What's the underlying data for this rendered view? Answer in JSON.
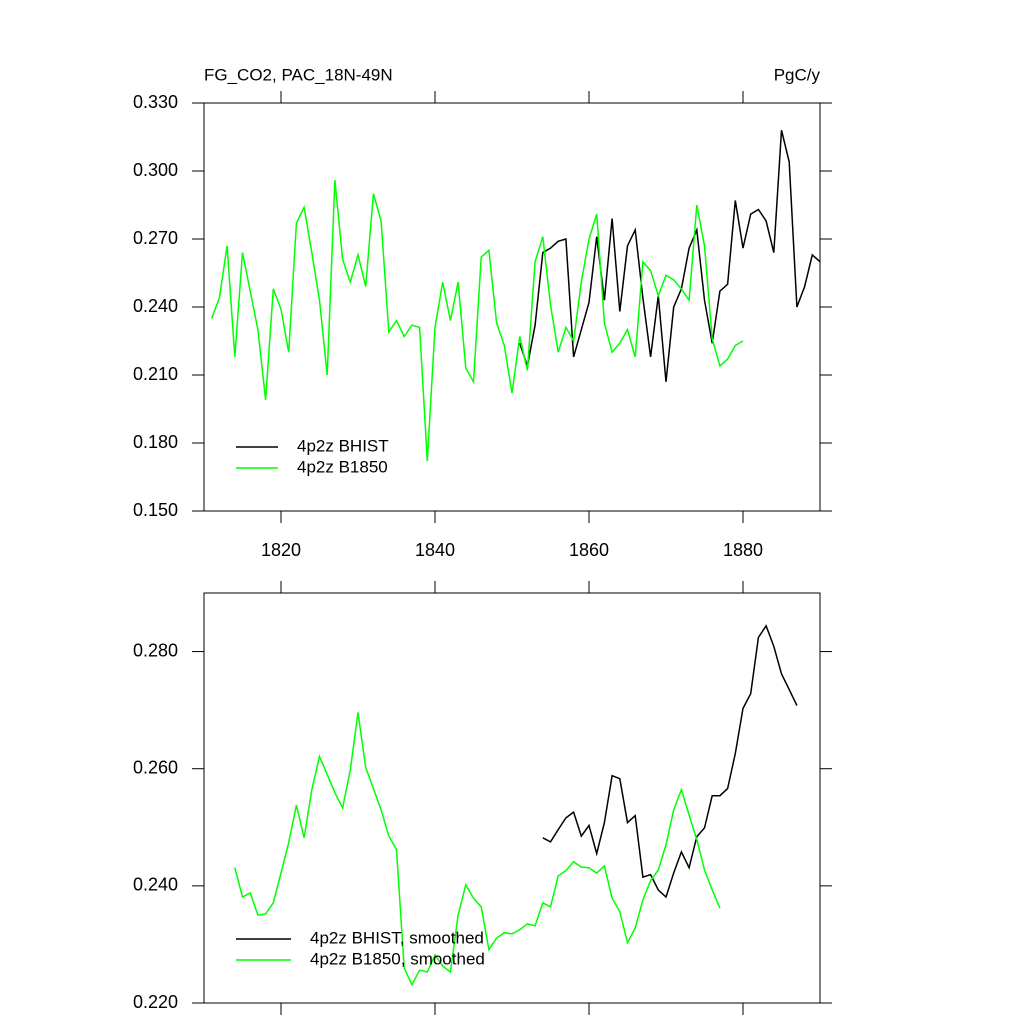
{
  "chart_data": [
    {
      "type": "line",
      "title": "FG_CO2, PAC_18N-49N",
      "units": "PgC/y",
      "legend": "lower left",
      "xlim": [
        1810,
        1890
      ],
      "xticks": [
        1820,
        1840,
        1860,
        1880
      ],
      "show_x_labels": true,
      "ylim": [
        0.15,
        0.33
      ],
      "yticks": [
        {
          "value": 0.15,
          "label": "0.150"
        },
        {
          "value": 0.18,
          "label": "0.180"
        },
        {
          "value": 0.21,
          "label": "0.210"
        },
        {
          "value": 0.24,
          "label": "0.240"
        },
        {
          "value": 0.27,
          "label": "0.270"
        },
        {
          "value": 0.3,
          "label": "0.300"
        },
        {
          "value": 0.33,
          "label": "0.330"
        }
      ],
      "x": [
        1811,
        1812,
        1813,
        1814,
        1815,
        1816,
        1817,
        1818,
        1819,
        1820,
        1821,
        1822,
        1823,
        1824,
        1825,
        1826,
        1827,
        1828,
        1829,
        1830,
        1831,
        1832,
        1833,
        1834,
        1835,
        1836,
        1837,
        1838,
        1839,
        1840,
        1841,
        1842,
        1843,
        1844,
        1845,
        1846,
        1847,
        1848,
        1849,
        1850,
        1851,
        1852,
        1853,
        1854,
        1855,
        1856,
        1857,
        1858,
        1859,
        1860,
        1861,
        1862,
        1863,
        1864,
        1865,
        1866,
        1867,
        1868,
        1869,
        1870,
        1871,
        1872,
        1873,
        1874,
        1875,
        1876,
        1877,
        1878,
        1879,
        1880,
        1881,
        1882,
        1883,
        1884,
        1885,
        1886,
        1887,
        1888,
        1889,
        1890
      ],
      "series": [
        {
          "name": "4p2z BHIST",
          "color": "#000000",
          "values": [
            null,
            null,
            null,
            null,
            null,
            null,
            null,
            null,
            null,
            null,
            null,
            null,
            null,
            null,
            null,
            null,
            null,
            null,
            null,
            null,
            null,
            null,
            null,
            null,
            null,
            null,
            null,
            null,
            null,
            null,
            null,
            null,
            null,
            null,
            null,
            null,
            null,
            null,
            null,
            null,
            0.224,
            0.214,
            0.232,
            0.264,
            0.266,
            0.269,
            0.27,
            0.218,
            0.23,
            0.242,
            0.271,
            0.243,
            0.279,
            0.238,
            0.267,
            0.274,
            0.244,
            0.218,
            0.245,
            0.207,
            0.24,
            0.248,
            0.266,
            0.274,
            0.243,
            0.224,
            0.247,
            0.25,
            0.287,
            0.266,
            0.281,
            0.283,
            0.278,
            0.264,
            0.318,
            0.304,
            0.24,
            0.249,
            0.263,
            0.26
          ]
        },
        {
          "name": "4p2z B1850",
          "color": "#00ff00",
          "values": [
            0.235,
            0.244,
            0.267,
            0.218,
            0.264,
            0.247,
            0.23,
            0.199,
            0.248,
            0.239,
            0.22,
            0.277,
            0.284,
            0.264,
            0.243,
            0.21,
            0.296,
            0.261,
            0.251,
            0.263,
            0.249,
            0.29,
            0.278,
            0.229,
            0.234,
            0.227,
            0.232,
            0.231,
            0.172,
            0.231,
            0.251,
            0.234,
            0.251,
            0.213,
            0.207,
            0.262,
            0.265,
            0.233,
            0.223,
            0.202,
            0.227,
            0.212,
            0.26,
            0.271,
            0.241,
            0.22,
            0.231,
            0.225,
            0.251,
            0.27,
            0.281,
            0.233,
            0.22,
            0.224,
            0.23,
            0.218,
            0.26,
            0.256,
            0.245,
            0.254,
            0.252,
            0.248,
            0.243,
            0.285,
            0.267,
            0.226,
            0.214,
            0.217,
            0.223,
            0.225,
            null,
            null,
            null,
            null,
            null,
            null,
            null,
            null,
            null,
            null
          ]
        }
      ]
    },
    {
      "type": "line",
      "legend": "lower left",
      "xlim": [
        1810,
        1890
      ],
      "xticks": [
        1820,
        1840,
        1860,
        1880
      ],
      "show_x_labels": false,
      "ylim": [
        0.22,
        0.29
      ],
      "yticks": [
        {
          "value": 0.22,
          "label": "0.220"
        },
        {
          "value": 0.24,
          "label": "0.240"
        },
        {
          "value": 0.26,
          "label": "0.260"
        },
        {
          "value": 0.28,
          "label": "0.280"
        }
      ],
      "x": [
        1814,
        1815,
        1816,
        1817,
        1818,
        1819,
        1820,
        1821,
        1822,
        1823,
        1824,
        1825,
        1826,
        1827,
        1828,
        1829,
        1830,
        1831,
        1832,
        1833,
        1834,
        1835,
        1836,
        1837,
        1838,
        1839,
        1840,
        1841,
        1842,
        1843,
        1844,
        1845,
        1846,
        1847,
        1848,
        1849,
        1850,
        1851,
        1852,
        1853,
        1854,
        1855,
        1856,
        1857,
        1858,
        1859,
        1860,
        1861,
        1862,
        1863,
        1864,
        1865,
        1866,
        1867,
        1868,
        1869,
        1870,
        1871,
        1872,
        1873,
        1874,
        1875,
        1876,
        1877,
        1878,
        1879,
        1880,
        1881,
        1882,
        1883,
        1884,
        1885,
        1886,
        1887
      ],
      "series": [
        {
          "name": "4p2z BHIST, smoothed",
          "color": "#000000",
          "values": [
            null,
            null,
            null,
            null,
            null,
            null,
            null,
            null,
            null,
            null,
            null,
            null,
            null,
            null,
            null,
            null,
            null,
            null,
            null,
            null,
            null,
            null,
            null,
            null,
            null,
            null,
            null,
            null,
            null,
            null,
            null,
            null,
            null,
            null,
            null,
            null,
            null,
            null,
            null,
            null,
            0.2482,
            0.2475,
            0.2496,
            0.2516,
            0.2526,
            0.2485,
            0.2503,
            0.2455,
            0.2508,
            0.2588,
            0.2583,
            0.2508,
            0.252,
            0.2415,
            0.2419,
            0.2393,
            0.2381,
            0.2422,
            0.2458,
            0.2431,
            0.2484,
            0.2499,
            0.2554,
            0.2554,
            0.2566,
            0.2626,
            0.2703,
            0.2728,
            0.2824,
            0.2844,
            0.2809,
            0.2762,
            0.2735,
            0.2708
          ]
        },
        {
          "name": "4p2z B1850, smoothed",
          "color": "#00ff00",
          "values": [
            0.2431,
            0.2381,
            0.2388,
            0.235,
            0.2352,
            0.2371,
            0.2422,
            0.2474,
            0.2538,
            0.2482,
            0.2564,
            0.2621,
            0.259,
            0.2559,
            0.2533,
            0.2598,
            0.2696,
            0.2602,
            0.2566,
            0.253,
            0.2485,
            0.2462,
            0.226,
            0.2231,
            0.2256,
            0.2253,
            0.2282,
            0.2263,
            0.2253,
            0.235,
            0.2402,
            0.2379,
            0.2364,
            0.2291,
            0.2311,
            0.232,
            0.2318,
            0.2325,
            0.2335,
            0.2332,
            0.2371,
            0.2364,
            0.2417,
            0.2426,
            0.2441,
            0.2432,
            0.2431,
            0.2422,
            0.2434,
            0.2379,
            0.2356,
            0.2303,
            0.2328,
            0.2376,
            0.2409,
            0.2427,
            0.247,
            0.253,
            0.2564,
            0.2521,
            0.2479,
            0.2427,
            0.2393,
            0.2362,
            null,
            null,
            null,
            null,
            null,
            null,
            null,
            null,
            null,
            null
          ]
        }
      ]
    }
  ]
}
